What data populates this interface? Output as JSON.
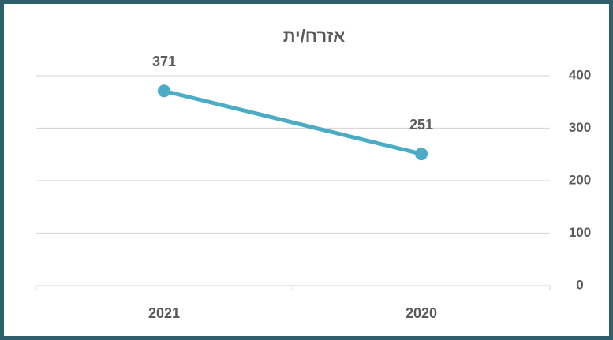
{
  "chart_data": {
    "type": "line",
    "title": "אזרח/ית",
    "categories": [
      "2021",
      "2020"
    ],
    "values": [
      371,
      251
    ],
    "color": "#4bacc6",
    "ylim": [
      0,
      400
    ],
    "yticks": [
      0,
      100,
      200,
      300,
      400
    ],
    "grid": true,
    "y_axis_side": "right"
  }
}
